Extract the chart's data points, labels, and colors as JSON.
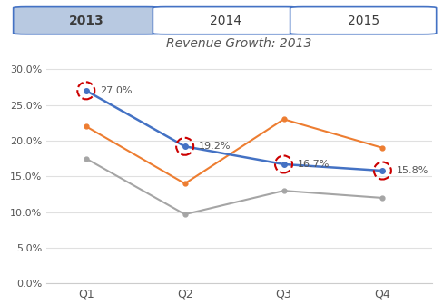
{
  "title": "Revenue Growth: 2013",
  "categories": [
    "Q1",
    "Q2",
    "Q3",
    "Q4"
  ],
  "series_blue": [
    0.27,
    0.192,
    0.167,
    0.158
  ],
  "series_orange": [
    0.22,
    0.14,
    0.23,
    0.19
  ],
  "series_gray": [
    0.175,
    0.097,
    0.13,
    0.12
  ],
  "blue_color": "#4472C4",
  "orange_color": "#ED7D31",
  "gray_color": "#A5A5A5",
  "highlight_color": "#CC0000",
  "ylim": [
    0.0,
    0.32
  ],
  "yticks": [
    0.0,
    0.05,
    0.1,
    0.15,
    0.2,
    0.25,
    0.3
  ],
  "ytick_labels": [
    "0.0%",
    "5.0%",
    "10.0%",
    "15.0%",
    "20.0%",
    "25.0%",
    "30.0%"
  ],
  "labels_2013": [
    "27.0%",
    "19.2%",
    "16.7%",
    "15.8%"
  ],
  "tab_labels": [
    "2013",
    "2014",
    "2015"
  ],
  "tab_active": 0,
  "tab_active_bg": "#B8C9E1",
  "tab_inactive_bg": "#FFFFFF",
  "tab_border_color": "#4472C4",
  "background_color": "#FFFFFF"
}
